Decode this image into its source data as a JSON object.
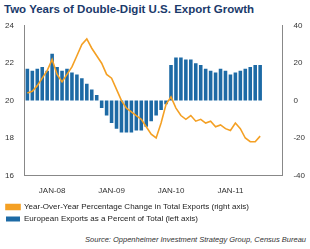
{
  "chart_data": {
    "type": "bar",
    "title": "Two Years of Double-Digit U.S. Export Growth",
    "annotations": [
      "Source: Oppenheimer Investment Strategy Group, Census Bureau"
    ],
    "categories": [
      null,
      null,
      null,
      null,
      null,
      "JAN-08",
      null,
      null,
      null,
      null,
      null,
      null,
      null,
      null,
      null,
      null,
      null,
      "JAN-09",
      null,
      null,
      null,
      null,
      null,
      null,
      null,
      null,
      null,
      null,
      null,
      "JAN-10",
      null,
      null,
      null,
      null,
      null,
      null,
      null,
      null,
      null,
      null,
      null,
      "JAN-11",
      null,
      null,
      null,
      null,
      null,
      null,
      null,
      null,
      null,
      null
    ],
    "series": [
      {
        "name": "Year-Over-Year Percentage Change in Total Exports (right axis)",
        "type": "line",
        "axis": "y2",
        "color": "#f4a024",
        "values": [
          4,
          5,
          8,
          12,
          16,
          22,
          14,
          10,
          14,
          18,
          24,
          30,
          33,
          28,
          24,
          20,
          14,
          12,
          6,
          0,
          -4,
          -6,
          -8,
          -10,
          -14,
          -18,
          -20,
          -12,
          -2,
          2,
          -4,
          -8,
          -10,
          -8,
          -11,
          -10,
          -12,
          -11,
          -14,
          -13,
          -15,
          -16,
          -12,
          -15,
          -20,
          -22,
          -22,
          -19,
          null,
          null,
          null,
          null
        ]
      },
      {
        "name": "European Exports as a Percent of Total (left axis)",
        "type": "bar",
        "color": "#1d6aa5",
        "values": [
          21.7,
          21.6,
          21.7,
          21.8,
          21.6,
          22.5,
          21.8,
          21.6,
          21.7,
          21.5,
          21.4,
          21.2,
          20.9,
          20.6,
          20.3,
          19.6,
          19.2,
          18.8,
          18.5,
          18.3,
          18.3,
          18.3,
          18.4,
          18.4,
          18.6,
          18.9,
          19.2,
          19.5,
          19.8,
          21.9,
          22.3,
          22.3,
          22.2,
          22.2,
          22.0,
          21.9,
          21.7,
          21.6,
          21.5,
          21.7,
          21.6,
          21.4,
          21.5,
          21.6,
          21.7,
          21.8,
          21.9,
          21.9,
          null,
          null,
          null,
          null
        ]
      }
    ],
    "ylim": [
      16,
      24
    ],
    "yticks": [
      16,
      18,
      20,
      22,
      24
    ],
    "y2lim": [
      -40,
      40
    ],
    "y2ticks": [
      -40,
      -20,
      0,
      20,
      40
    ],
    "grid": false,
    "legend": "bottom"
  }
}
